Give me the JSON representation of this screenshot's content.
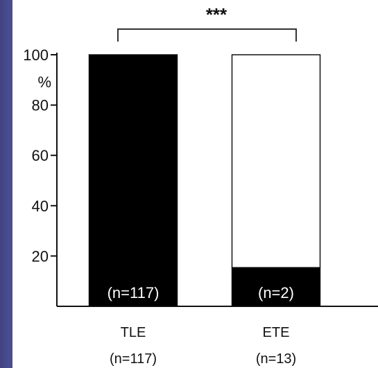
{
  "chart_data": {
    "type": "bar",
    "stacked": true,
    "categories": [
      "TLE",
      "ETE"
    ],
    "category_counts": [
      "(n=117)",
      "(n=13)"
    ],
    "series": [
      {
        "values": [
          100,
          15.4
        ],
        "color": "#000000",
        "labels": [
          "(n=117)",
          "(n=2)"
        ]
      },
      {
        "values": [
          0,
          84.6
        ],
        "color": "#ffffff"
      }
    ],
    "ylabel": "%",
    "ylim": [
      0,
      100
    ],
    "yticks": [
      20,
      40,
      60,
      80,
      100
    ],
    "significance": "***",
    "grid": false
  }
}
